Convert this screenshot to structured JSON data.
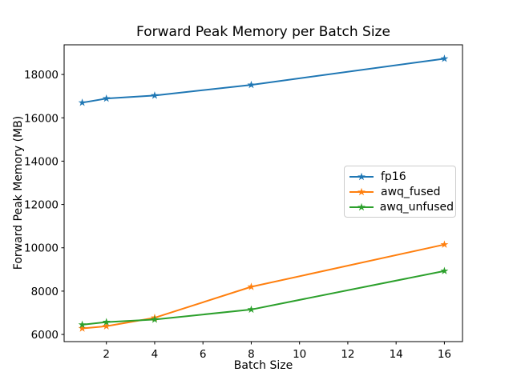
{
  "chart_data": {
    "type": "line",
    "title": "Forward Peak Memory per Batch Size",
    "xlabel": "Batch Size",
    "ylabel": "Forward Peak Memory (MB)",
    "x": [
      1,
      2,
      4,
      8,
      16
    ],
    "series": [
      {
        "name": "fp16",
        "color": "#1f77b4",
        "values": [
          16700,
          16890,
          17030,
          17520,
          18730
        ]
      },
      {
        "name": "awq_fused",
        "color": "#ff7f0e",
        "values": [
          6280,
          6380,
          6770,
          8200,
          10150
        ]
      },
      {
        "name": "awq_unfused",
        "color": "#2ca02c",
        "values": [
          6450,
          6570,
          6690,
          7150,
          8930
        ]
      }
    ],
    "marker": "star",
    "xticks": [
      2,
      4,
      6,
      8,
      10,
      12,
      14,
      16
    ],
    "yticks": [
      6000,
      8000,
      10000,
      12000,
      14000,
      16000,
      18000
    ],
    "xlim": [
      0.25,
      16.75
    ],
    "ylim": [
      5670,
      19370
    ],
    "grid": false,
    "legend_position": "center right",
    "axis_color": "#000000",
    "legend_border_color": "#cccccc",
    "background_color": "#ffffff"
  }
}
